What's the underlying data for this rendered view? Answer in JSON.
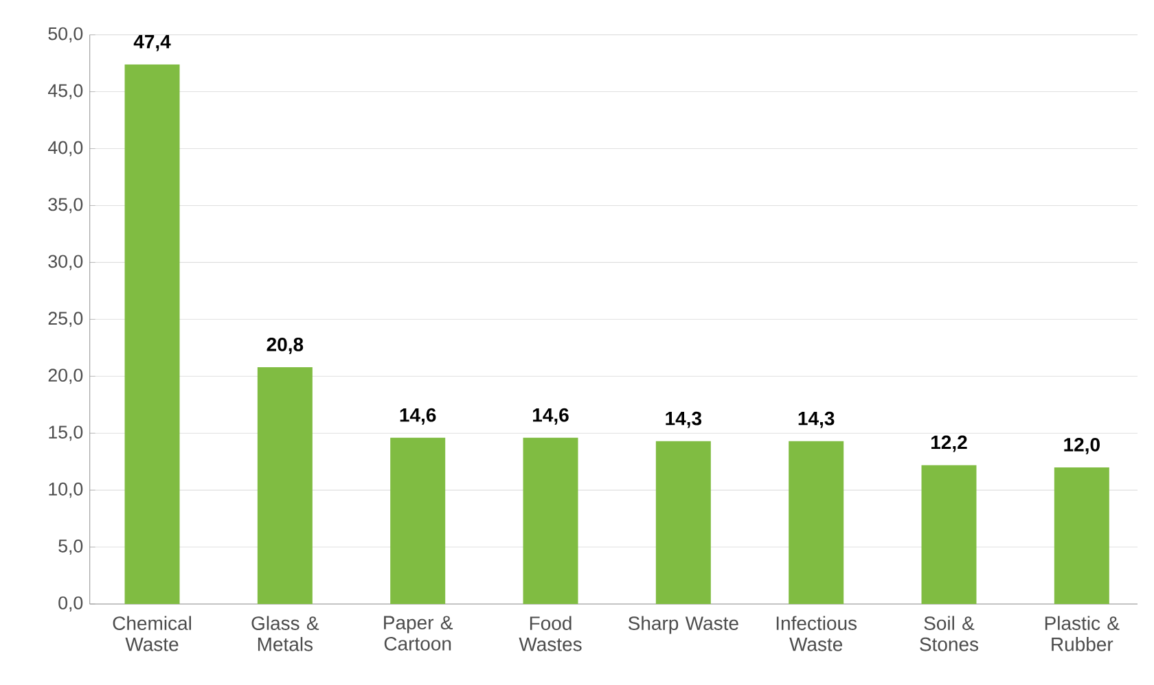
{
  "chart_data": {
    "type": "bar",
    "categories": [
      "Chemical Waste",
      "Glass & Metals",
      "Paper & Cartoon",
      "Food Wastes",
      "Sharp Waste",
      "Infectious Waste",
      "Soil & Stones",
      "Plastic & Rubber"
    ],
    "values": [
      47.4,
      20.8,
      14.6,
      14.6,
      14.3,
      14.3,
      12.2,
      12.0
    ],
    "value_labels": [
      "47,4",
      "20,8",
      "14,6",
      "14,6",
      "14,3",
      "14,3",
      "12,2",
      "12,0"
    ],
    "color": "#80bc42",
    "ylim": [
      0,
      50
    ],
    "yticks": [
      {
        "value": 0,
        "label": "0,0"
      },
      {
        "value": 5,
        "label": "5,0"
      },
      {
        "value": 10,
        "label": "10,0"
      },
      {
        "value": 15,
        "label": "15,0"
      },
      {
        "value": 20,
        "label": "20,0"
      },
      {
        "value": 25,
        "label": "25,0"
      },
      {
        "value": 30,
        "label": "30,0"
      },
      {
        "value": 35,
        "label": "35,0"
      },
      {
        "value": 40,
        "label": "40,0"
      },
      {
        "value": 45,
        "label": "45,0"
      },
      {
        "value": 50,
        "label": "50,0"
      }
    ],
    "grid": "y"
  }
}
